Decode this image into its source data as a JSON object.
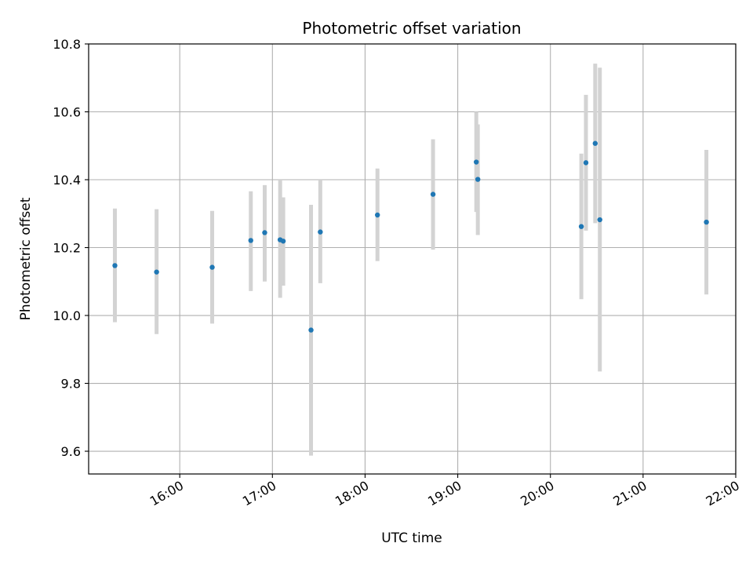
{
  "chart_data": {
    "type": "scatter",
    "title": "Photometric offset variation",
    "xlabel": "UTC time",
    "ylabel": "Photometric offset",
    "x_tick_labels": [
      "16:00",
      "17:00",
      "18:00",
      "19:00",
      "20:00",
      "21:00",
      "22:00"
    ],
    "x_ticks_hours": [
      16,
      17,
      18,
      19,
      20,
      21,
      22
    ],
    "y_ticks": [
      9.6,
      9.8,
      10.0,
      10.2,
      10.4,
      10.6,
      10.8
    ],
    "y_tick_labels": [
      "9.6",
      "9.8",
      "10.0",
      "10.2",
      "10.4",
      "10.6",
      "10.8"
    ],
    "xlim": [
      "15:01",
      "22:00"
    ],
    "ylim": [
      9.533,
      10.8
    ],
    "grid": true,
    "marker_color": "#1f77b4",
    "errorbar_color": "#d3d3d3",
    "points": [
      {
        "time": "15:18",
        "value": 10.147,
        "low": 9.98,
        "high": 10.315
      },
      {
        "time": "15:45",
        "value": 10.128,
        "low": 9.945,
        "high": 10.313
      },
      {
        "time": "16:21",
        "value": 10.142,
        "low": 9.976,
        "high": 10.308
      },
      {
        "time": "16:46",
        "value": 10.221,
        "low": 10.072,
        "high": 10.366
      },
      {
        "time": "16:55",
        "value": 10.244,
        "low": 10.1,
        "high": 10.384
      },
      {
        "time": "17:05",
        "value": 10.223,
        "low": 10.052,
        "high": 10.398
      },
      {
        "time": "17:07",
        "value": 10.219,
        "low": 10.088,
        "high": 10.348
      },
      {
        "time": "17:25",
        "value": 9.957,
        "low": 9.587,
        "high": 10.326
      },
      {
        "time": "17:31",
        "value": 10.246,
        "low": 10.095,
        "high": 10.398
      },
      {
        "time": "18:08",
        "value": 10.296,
        "low": 10.16,
        "high": 10.433
      },
      {
        "time": "18:44",
        "value": 10.357,
        "low": 10.194,
        "high": 10.519
      },
      {
        "time": "19:12",
        "value": 10.452,
        "low": 10.305,
        "high": 10.6
      },
      {
        "time": "19:13",
        "value": 10.401,
        "low": 10.237,
        "high": 10.563
      },
      {
        "time": "20:20",
        "value": 10.262,
        "low": 10.048,
        "high": 10.477
      },
      {
        "time": "20:23",
        "value": 10.45,
        "low": 10.25,
        "high": 10.65
      },
      {
        "time": "20:29",
        "value": 10.507,
        "low": 10.272,
        "high": 10.742
      },
      {
        "time": "20:32",
        "value": 10.282,
        "low": 9.835,
        "high": 10.73
      },
      {
        "time": "21:41",
        "value": 10.275,
        "low": 10.062,
        "high": 10.488
      }
    ]
  }
}
